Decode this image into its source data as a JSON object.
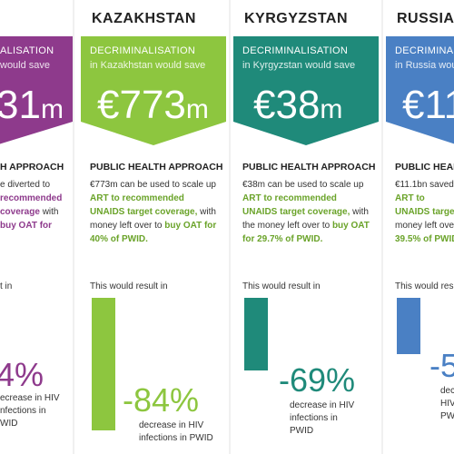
{
  "colors": {
    "purple": "#8e3a8c",
    "green": "#8dc63f",
    "teal": "#1f8a7a",
    "blue": "#4a80c4"
  },
  "cards": [
    {
      "country": "",
      "decrim": "ALISATION",
      "subtitle": "would save",
      "amount": "31",
      "unit": "m",
      "public_health": "H APPROACH",
      "desc_1": "e diverted to",
      "desc_2": "recommended",
      "desc_3": "coverage",
      "desc_4": " with",
      "desc_5": "buy OAT for",
      "result": "t in",
      "percent": "4%",
      "percent_label": "ecrease in HIV\nnfections in\nWID"
    },
    {
      "country": "KAZAKHSTAN",
      "decrim": "DECRIMINALISATION",
      "subtitle": "in Kazakhstan would save",
      "amount": "€773",
      "unit": "m",
      "public_health": "PUBLIC HEALTH APPROACH",
      "desc_1": "€773m can be used to scale up ",
      "desc_2": "ART to recommended UNAIDS target coverage,",
      "desc_3": " with money left over to ",
      "desc_4": "buy OAT for 40% of PWID.",
      "result": "This would result in",
      "percent": "-84%",
      "percent_label": "decrease in HIV\ninfections in PWID"
    },
    {
      "country": "KYRGYZSTAN",
      "decrim": "DECRIMINALISATION",
      "subtitle": "in Kyrgyzstan  would save",
      "amount": "€38",
      "unit": "m",
      "public_health": "PUBLIC HEALTH APPROACH",
      "desc_1": "€38m can be used to scale up ",
      "desc_2": "ART to recommended UNAIDS target coverage,",
      "desc_3": " with the money left over to ",
      "desc_4": "buy OAT for 29.7% of PWID.",
      "result": "This would result in",
      "percent": "-69%",
      "percent_label": "decrease in HIV\ninfections in\nPWID"
    },
    {
      "country": "RUSSIA",
      "decrim": "DECRIMINALIS",
      "subtitle": "in Russia would",
      "amount": "€11.",
      "unit": "",
      "public_health": "PUBLIC HEALTH",
      "desc_1": "€11.1bn saved c",
      "desc_2": "ART to",
      "desc_3": "UNAIDS target",
      "desc_4": "money left ove",
      "desc_5": "39.5% of PWID",
      "result": "This would resu",
      "percent": "-5",
      "percent_label": "decr\nHIV\nPWI"
    }
  ]
}
